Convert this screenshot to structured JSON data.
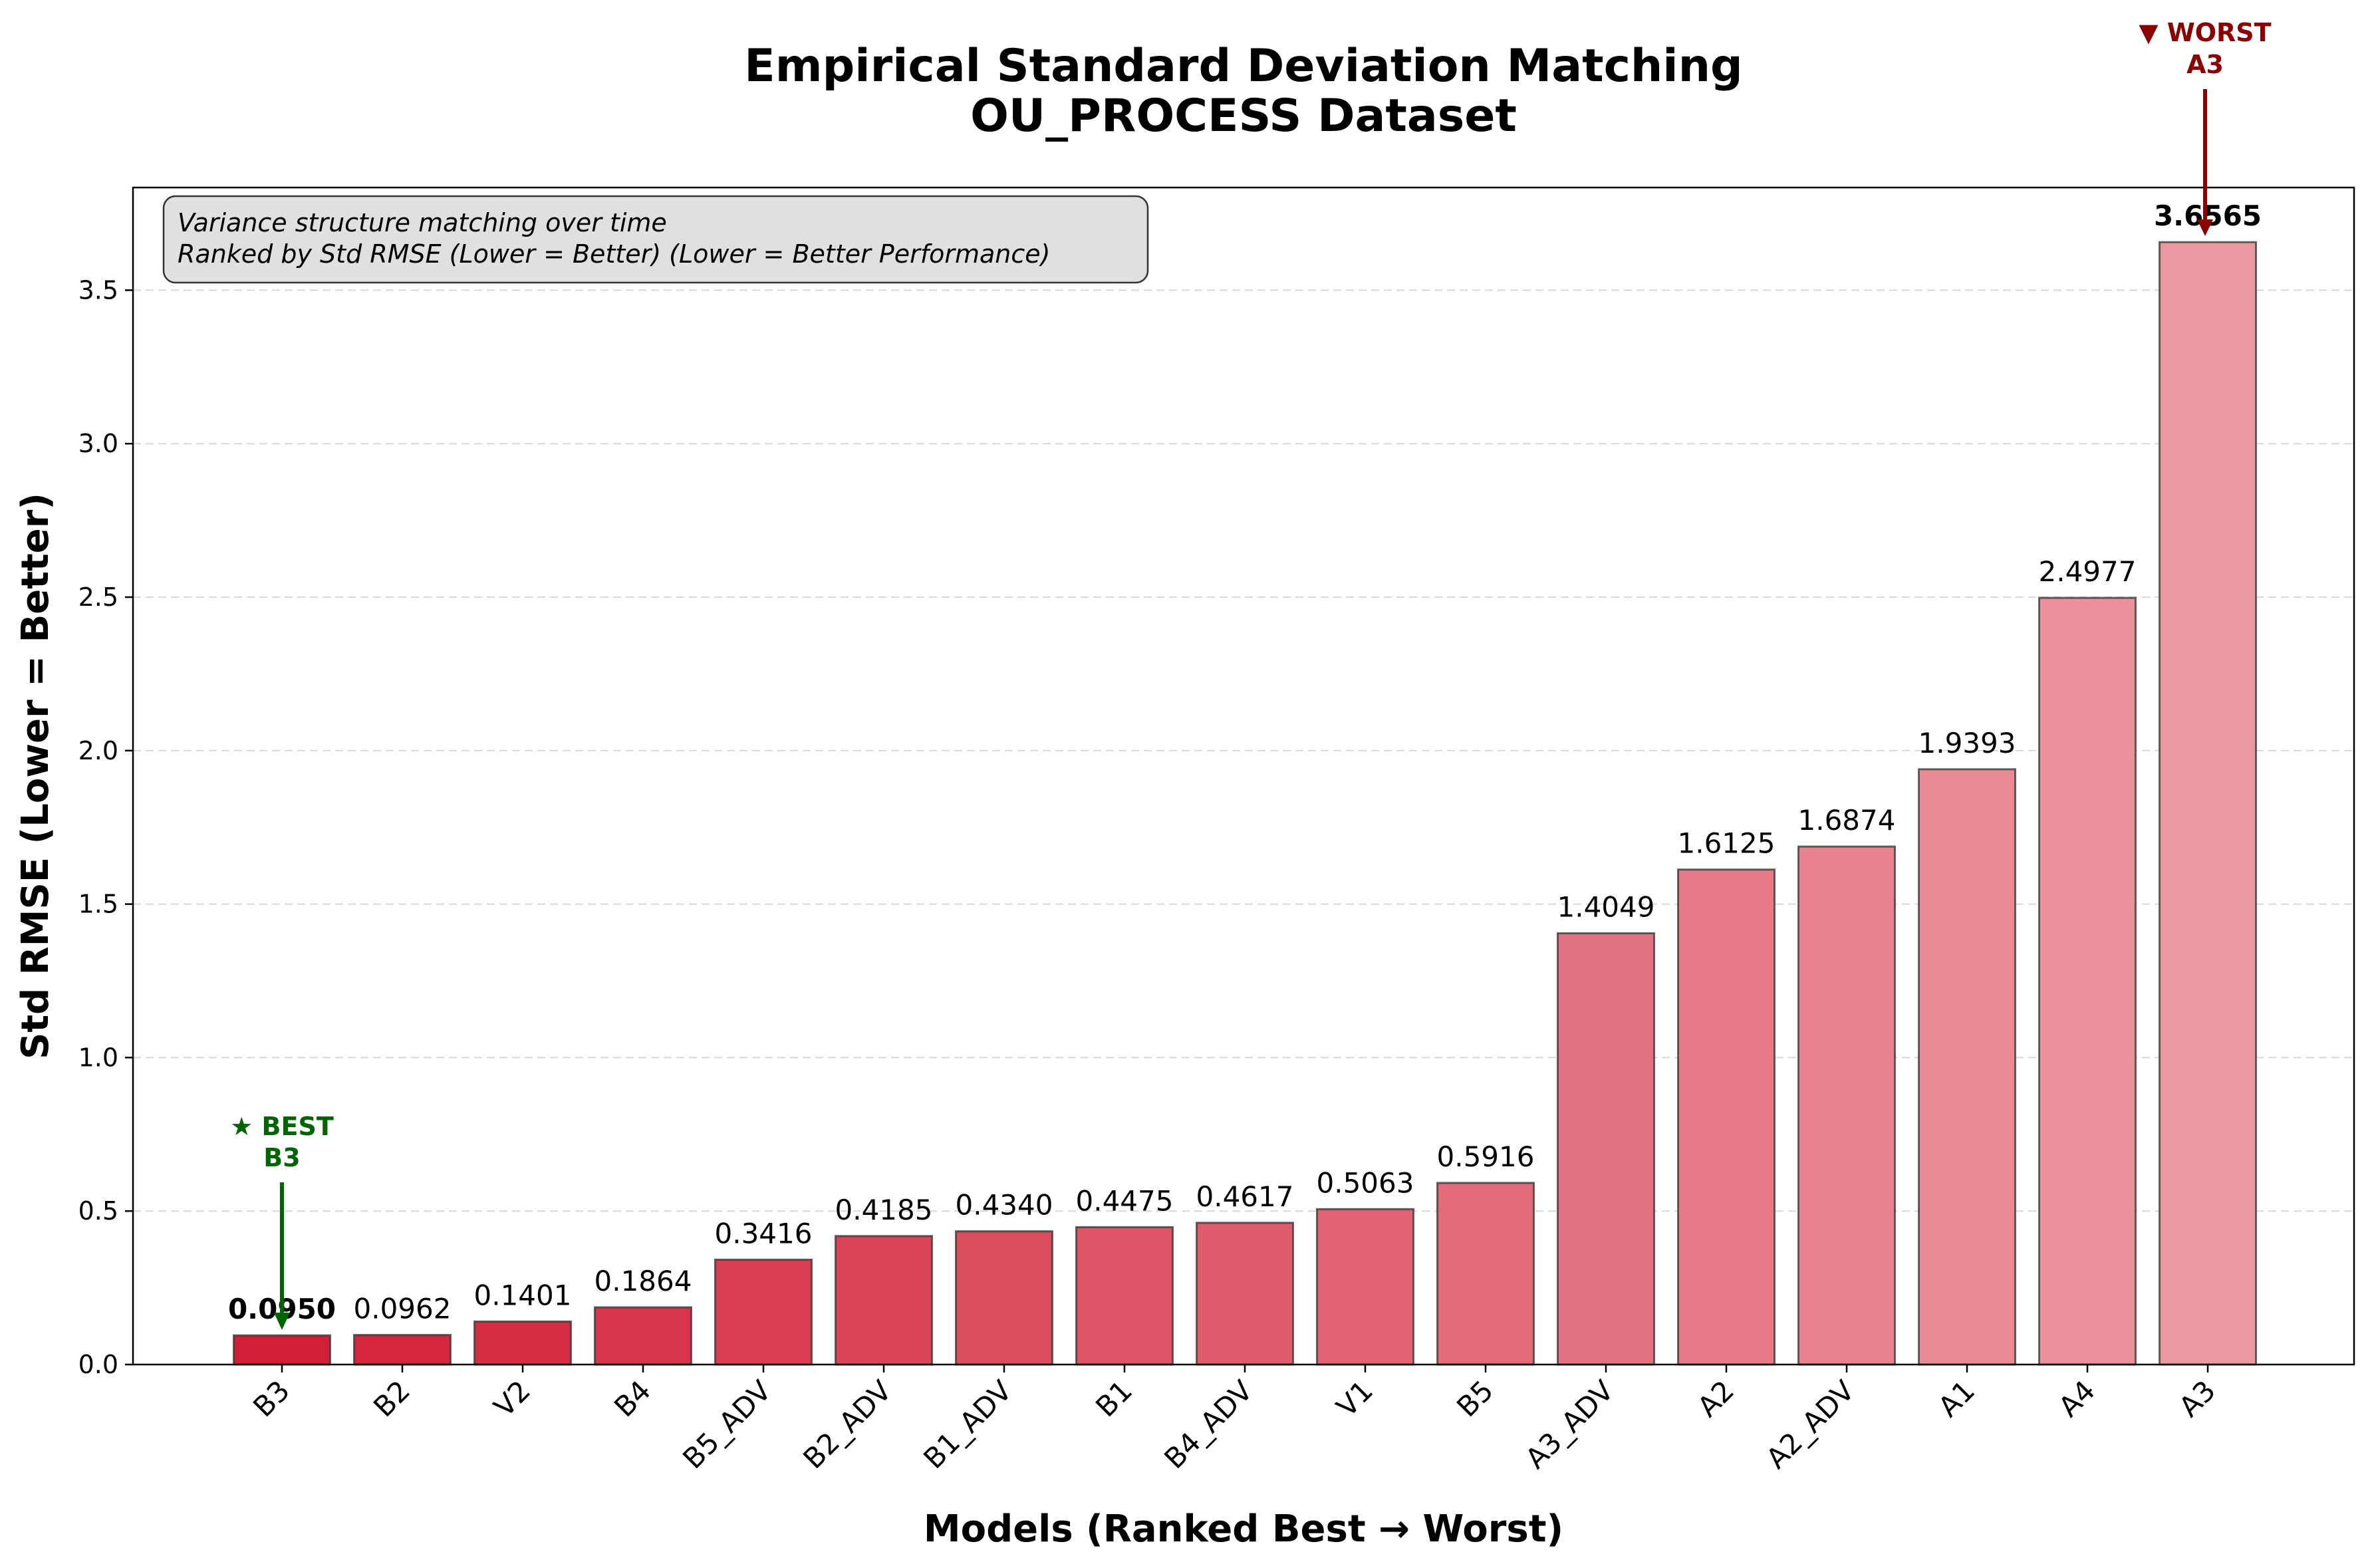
{
  "chart_data": {
    "type": "bar",
    "title_line1": "Empirical Standard Deviation Matching",
    "title_line2": "OU_PROCESS Dataset",
    "xlabel": "Models (Ranked Best → Worst)",
    "ylabel": "Std RMSE (Lower = Better)",
    "ylim": [
      0,
      3.85
    ],
    "yticks": [
      "0.0",
      "0.5",
      "1.0",
      "1.5",
      "2.0",
      "2.5",
      "3.0",
      "3.5"
    ],
    "grid": "horizontal dashed",
    "categories": [
      "B3",
      "B2",
      "V2",
      "B4",
      "B5_ADV",
      "B2_ADV",
      "B1_ADV",
      "B1",
      "B4_ADV",
      "V1",
      "B5",
      "A3_ADV",
      "A2",
      "A2_ADV",
      "A1",
      "A4",
      "A3"
    ],
    "values": [
      0.095,
      0.0962,
      0.1401,
      0.1864,
      0.3416,
      0.4185,
      0.434,
      0.4475,
      0.4617,
      0.5063,
      0.5916,
      1.4049,
      1.6125,
      1.6874,
      1.9393,
      2.4977,
      3.6565
    ],
    "value_labels": [
      "0.0950",
      "0.0962",
      "0.1401",
      "0.1864",
      "0.3416",
      "0.4185",
      "0.4340",
      "0.4475",
      "0.4617",
      "0.5063",
      "0.5916",
      "1.4049",
      "1.6125",
      "1.6874",
      "1.9393",
      "2.4977",
      "3.6565"
    ],
    "note_line1": "Variance structure matching over time",
    "note_line2": "Ranked by Std RMSE (Lower = Better) (Lower = Better Performance)",
    "best_annotation": {
      "line1": "★ BEST",
      "line2": "B3",
      "color": "#006400"
    },
    "worst_annotation": {
      "line1": "▼ WORST",
      "line2": "A3",
      "color": "#8b0000"
    },
    "bar_color_dark": "#d21e37",
    "bar_color_light": "#ec99a2"
  }
}
